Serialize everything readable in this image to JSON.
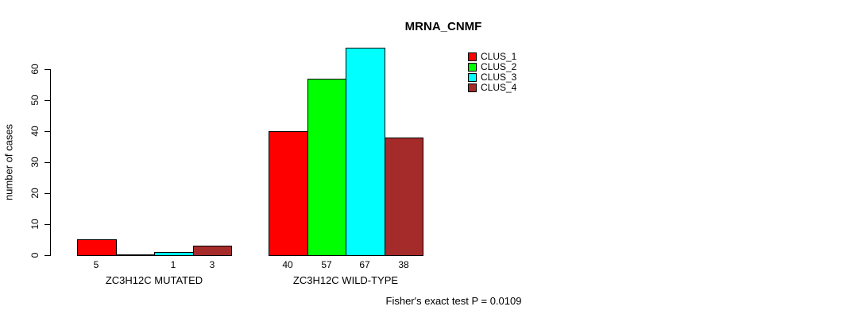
{
  "chart_data": {
    "type": "bar",
    "title": "MRNA_CNMF",
    "ylabel": "number of cases",
    "xlabel": "",
    "ylim": [
      0,
      60
    ],
    "yticks": [
      0,
      10,
      20,
      30,
      40,
      50,
      60
    ],
    "grid": false,
    "legend_position": "top-right",
    "categories": [
      "ZC3H12C MUTATED",
      "ZC3H12C WILD-TYPE"
    ],
    "series": [
      {
        "name": "CLUS_1",
        "color": "#ff0000",
        "values": [
          5,
          40
        ]
      },
      {
        "name": "CLUS_2",
        "color": "#00ff00",
        "values": [
          0,
          57
        ]
      },
      {
        "name": "CLUS_3",
        "color": "#00ffff",
        "values": [
          1,
          67
        ]
      },
      {
        "name": "CLUS_4",
        "color": "#a52a2a",
        "values": [
          3,
          38
        ]
      }
    ],
    "bar_value_labels": [
      [
        "5",
        "",
        "1",
        "3"
      ],
      [
        "40",
        "57",
        "67",
        "38"
      ]
    ],
    "footer": "Fisher's exact test P = 0.0109"
  }
}
